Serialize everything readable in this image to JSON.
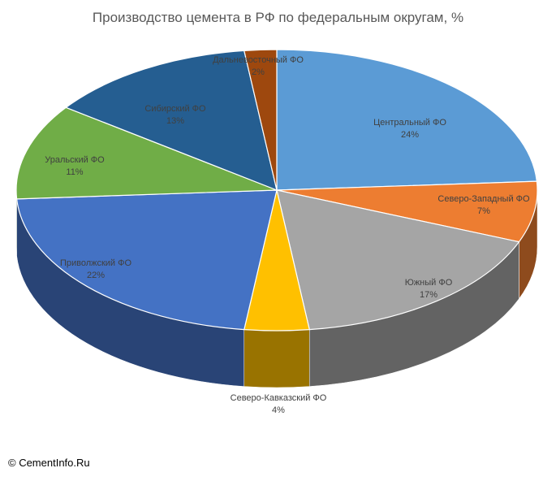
{
  "chart_data": {
    "type": "pie",
    "title": "Производство цемента в РФ по федеральным округам, %",
    "slices": [
      {
        "name": "Центральный ФО",
        "value": 24,
        "label": "24%",
        "color": "#5B9BD5"
      },
      {
        "name": "Северо-Западный ФО",
        "value": 7,
        "label": "7%",
        "color": "#ED7D31"
      },
      {
        "name": "Южный ФО",
        "value": 17,
        "label": "17%",
        "color": "#A5A5A5"
      },
      {
        "name": "Северо-Кавказский ФО",
        "value": 4,
        "label": "4%",
        "color": "#FFC000"
      },
      {
        "name": "Приволжский ФО",
        "value": 22,
        "label": "22%",
        "color": "#4472C4"
      },
      {
        "name": "Уральский ФО",
        "value": 11,
        "label": "11%",
        "color": "#70AD47"
      },
      {
        "name": "Сибирский ФО",
        "value": 13,
        "label": "13%",
        "color": "#255E91"
      },
      {
        "name": "Дальневосточный ФО",
        "value": 2,
        "label": "2%",
        "color": "#9E480E"
      }
    ]
  },
  "footer": {
    "copyright": "© CementInfo.Ru"
  }
}
